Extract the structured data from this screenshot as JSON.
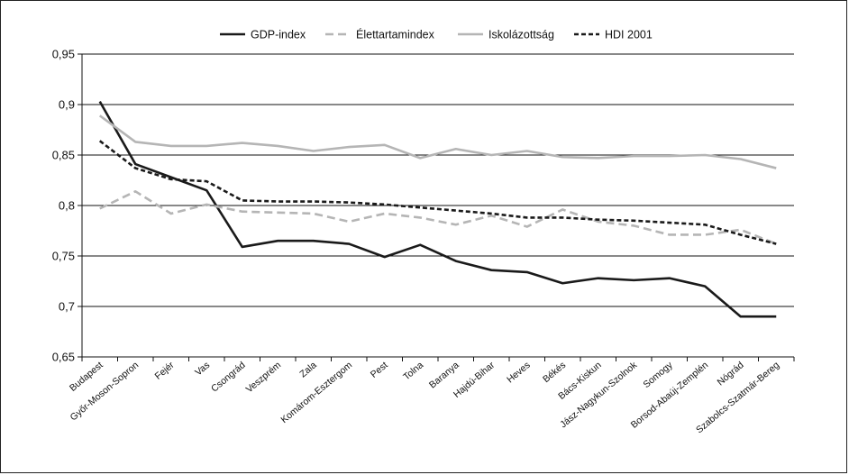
{
  "chart_data": {
    "type": "line",
    "categories": [
      "Budapest",
      "Győr-Moson-Sopron",
      "Fejér",
      "Vas",
      "Csongrád",
      "Veszprém",
      "Zala",
      "Komárom-Esztergom",
      "Pest",
      "Tolna",
      "Baranya",
      "Hajdú-Bihar",
      "Heves",
      "Békés",
      "Bács-Kiskun",
      "Jász-Nagykun-Szolnok",
      "Somogy",
      "Borsod-Abaúj-Zemplén",
      "Nógrád",
      "Szabolcs-Szatmár-Bereg"
    ],
    "ylim": [
      0.65,
      0.95
    ],
    "yticks": [
      0.65,
      0.7,
      0.75,
      0.8,
      0.85,
      0.9,
      0.95
    ],
    "ytick_labels": [
      "0,65",
      "0,7",
      "0,75",
      "0,8",
      "0,85",
      "0,9",
      "0,95"
    ],
    "grid": true,
    "legend_position": "top",
    "series": [
      {
        "name": "GDP-index",
        "color": "#1a1a1a",
        "dash": "solid",
        "values": [
          0.903,
          0.841,
          0.828,
          0.815,
          0.759,
          0.765,
          0.765,
          0.762,
          0.749,
          0.761,
          0.745,
          0.736,
          0.734,
          0.723,
          0.728,
          0.726,
          0.728,
          0.72,
          0.69,
          0.69
        ]
      },
      {
        "name": "Élettartamindex",
        "color": "#b5b5b5",
        "dash": "dashed",
        "values": [
          0.797,
          0.814,
          0.792,
          0.801,
          0.794,
          0.793,
          0.792,
          0.784,
          0.792,
          0.788,
          0.781,
          0.79,
          0.779,
          0.796,
          0.784,
          0.78,
          0.771,
          0.771,
          0.776,
          0.762
        ]
      },
      {
        "name": "Iskolázottság",
        "color": "#b5b5b5",
        "dash": "solid",
        "values": [
          0.889,
          0.863,
          0.859,
          0.859,
          0.862,
          0.859,
          0.854,
          0.858,
          0.86,
          0.847,
          0.856,
          0.85,
          0.854,
          0.848,
          0.847,
          0.849,
          0.849,
          0.85,
          0.846,
          0.837
        ]
      },
      {
        "name": "HDI 2001",
        "color": "#1a1a1a",
        "dash": "dotted",
        "values": [
          0.864,
          0.837,
          0.826,
          0.824,
          0.805,
          0.804,
          0.804,
          0.803,
          0.801,
          0.798,
          0.795,
          0.792,
          0.788,
          0.788,
          0.786,
          0.785,
          0.783,
          0.781,
          0.771,
          0.762
        ]
      }
    ]
  }
}
